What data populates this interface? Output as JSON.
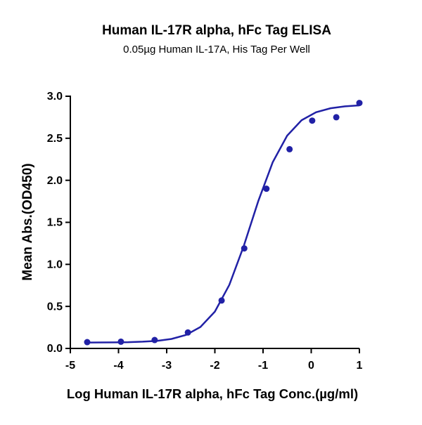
{
  "chart_data": {
    "type": "scatter",
    "title": "Human IL-17R alpha, hFc Tag ELISA",
    "subtitle": "0.05µg Human IL-17A, His Tag Per Well",
    "x_label": "Log Human IL-17R alpha, hFc Tag Conc.(µg/ml)",
    "y_label": "Mean Abs.(OD450)",
    "x": [
      -4.65,
      -3.95,
      -3.25,
      -2.56,
      -1.86,
      -1.39,
      -0.93,
      -0.45,
      0.02,
      0.52,
      1.0
    ],
    "values": [
      0.075,
      0.08,
      0.1,
      0.19,
      0.57,
      1.19,
      1.9,
      2.37,
      2.71,
      2.75,
      2.92
    ],
    "color": "#2121a6",
    "fit": {
      "x": [
        -4.7,
        -4.4,
        -4.1,
        -3.8,
        -3.5,
        -3.2,
        -2.9,
        -2.6,
        -2.3,
        -2.0,
        -1.7,
        -1.4,
        -1.1,
        -0.8,
        -0.5,
        -0.2,
        0.1,
        0.4,
        0.7,
        1.0
      ],
      "values": [
        0.07,
        0.071,
        0.072,
        0.074,
        0.08,
        0.09,
        0.113,
        0.16,
        0.255,
        0.438,
        0.756,
        1.219,
        1.751,
        2.214,
        2.531,
        2.715,
        2.81,
        2.857,
        2.88,
        2.891
      ]
    },
    "xlim": [
      -5,
      1
    ],
    "xticks": [
      -5,
      -4,
      -3,
      -2,
      -1,
      0,
      1
    ],
    "ylim": [
      0,
      3
    ],
    "yticks": [
      {
        "value": 0,
        "label": "0.0"
      },
      0.5,
      {
        "value": 1,
        "label": "1.0"
      },
      1.5,
      {
        "value": 2,
        "label": "2.0"
      },
      2.5,
      {
        "value": 3,
        "label": "3.0"
      }
    ]
  }
}
